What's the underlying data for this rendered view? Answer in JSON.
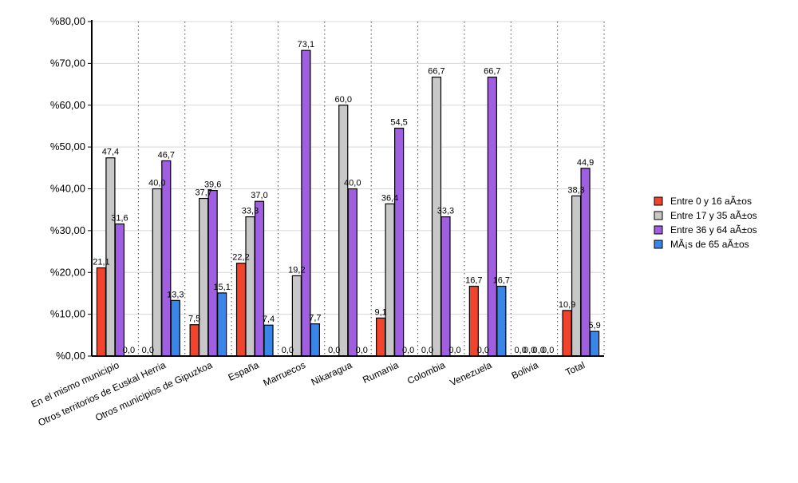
{
  "chart_data": {
    "type": "bar",
    "title": "",
    "xlabel": "",
    "ylabel": "",
    "ylim": [
      0,
      80
    ],
    "y_ticks": [
      0,
      10,
      20,
      30,
      40,
      50,
      60,
      70,
      80
    ],
    "y_tick_labels": [
      "%0,00",
      "%10,00",
      "%20,00",
      "%30,00",
      "%40,00",
      "%50,00",
      "%60,00",
      "%70,00",
      "%80,00"
    ],
    "categories": [
      "En el mismo municipio",
      "Otros territorios de Euskal Herria",
      "Otros municipios de Gipuzkoa",
      "España",
      "Marruecos",
      "Nikaragua",
      "Rumania",
      "Colombia",
      "Venezuela",
      "Bolivia",
      "Total"
    ],
    "series": [
      {
        "name": "Entre 0 y 16 aÃ±os",
        "color": "#f0452c",
        "values": [
          21.1,
          0.0,
          7.5,
          22.2,
          0.0,
          0.0,
          9.1,
          0.0,
          16.7,
          0.0,
          10.9
        ],
        "labels": [
          "21,1",
          "0,0",
          "7,5",
          "22,2",
          "0,0",
          "0,0",
          "9,1",
          "0,0",
          "16,7",
          "0,0",
          "10,9"
        ]
      },
      {
        "name": "Entre 17 y 35 aÃ±os",
        "color": "#c8c8c8",
        "values": [
          47.4,
          40.0,
          37.7,
          33.3,
          19.2,
          60.0,
          36.4,
          66.7,
          0.0,
          0.0,
          38.3
        ],
        "labels": [
          "47,4",
          "40,0",
          "37,7",
          "33,3",
          "19,2",
          "60,0",
          "36,4",
          "66,7",
          "0,0",
          "0,0",
          "38,3"
        ]
      },
      {
        "name": "Entre 36 y 64 aÃ±os",
        "color": "#a05ee0",
        "values": [
          31.6,
          46.7,
          39.6,
          37.0,
          73.1,
          40.0,
          54.5,
          33.3,
          66.7,
          0.0,
          44.9
        ],
        "labels": [
          "31,6",
          "46,7",
          "39,6",
          "37,0",
          "73,1",
          "40,0",
          "54,5",
          "33,3",
          "66,7",
          "0,0",
          "44,9"
        ]
      },
      {
        "name": "MÃ¡s de 65 aÃ±os",
        "color": "#3a86e8",
        "values": [
          0.0,
          13.3,
          15.1,
          7.4,
          7.7,
          0.0,
          0.0,
          0.0,
          16.7,
          0.0,
          5.9
        ],
        "labels": [
          "0,0",
          "13,3",
          "15,1",
          "7,4",
          "7,7",
          "0,0",
          "0,0",
          "0,0",
          "16,7",
          "0,0",
          "5,9"
        ]
      }
    ],
    "grid": true,
    "legend_position": "right"
  }
}
